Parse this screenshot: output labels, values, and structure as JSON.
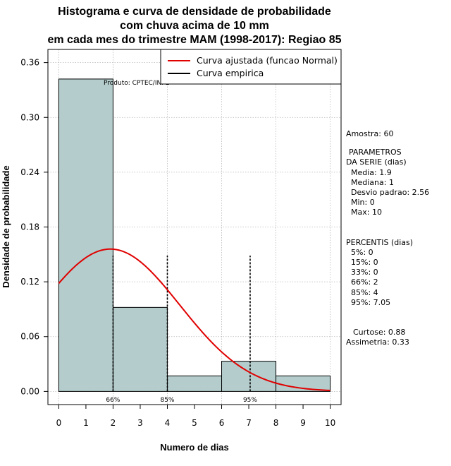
{
  "chart_data": {
    "type": "histogram",
    "title": [
      "Histograma e curva de densidade de probabilidade",
      "com chuva acima de 10 mm",
      "em cada mes do trimestre MAM (1998-2017): Regiao 85"
    ],
    "xlabel": "Numero de dias",
    "ylabel": "Densidade de probabilidade",
    "xlim": [
      -0.4,
      10.4
    ],
    "ylim": [
      -0.0144,
      0.3744
    ],
    "xticks": [
      0,
      1,
      2,
      3,
      4,
      5,
      6,
      7,
      8,
      9,
      10
    ],
    "yticks": [
      "0.00",
      "0.06",
      "0.12",
      "0.18",
      "0.24",
      "0.30",
      "0.36"
    ],
    "bins": [
      {
        "start": 0,
        "end": 2,
        "density": 0.342
      },
      {
        "start": 2,
        "end": 4,
        "density": 0.092
      },
      {
        "start": 4,
        "end": 6,
        "density": 0.017
      },
      {
        "start": 6,
        "end": 8,
        "density": 0.033
      },
      {
        "start": 8,
        "end": 10,
        "density": 0.017
      }
    ],
    "normal_fit": {
      "mean": 1.9,
      "sd": 2.56,
      "x_range": [
        0,
        10
      ]
    },
    "percentile_markers": [
      {
        "x": 2,
        "label": "66%"
      },
      {
        "x": 4,
        "label": "85%"
      },
      {
        "x": 7.05,
        "label": "95%"
      }
    ],
    "legend": {
      "position": "top-right",
      "items": [
        {
          "label": "Curva ajustada (funcao Normal)",
          "color": "#e00000"
        },
        {
          "label": "Curva empirica",
          "color": "#000000"
        }
      ]
    },
    "product_label": "Produto: CPTEC/INPE",
    "colors": {
      "bar_fill": "#b4cccc",
      "curve": "#e00000",
      "grid": "#b8b8b8"
    }
  },
  "stats_panel": {
    "sample": "Amostra: 60",
    "params_title_1": "PARAMETROS",
    "params_title_2": "DA SERIE (dias)",
    "params": [
      "Media: 1.9",
      "Mediana: 1",
      "Desvio padrao: 2.56",
      "Min: 0",
      "Max: 10"
    ],
    "percentiles_title": "PERCENTIS (dias)",
    "percentiles": [
      "5%: 0",
      "15%: 0",
      "33%: 0",
      "66%: 2",
      "85%: 4",
      "95%: 7.05"
    ],
    "kurtosis": "Curtose: 0.88",
    "skewness": "Assimetria: 0.33"
  }
}
